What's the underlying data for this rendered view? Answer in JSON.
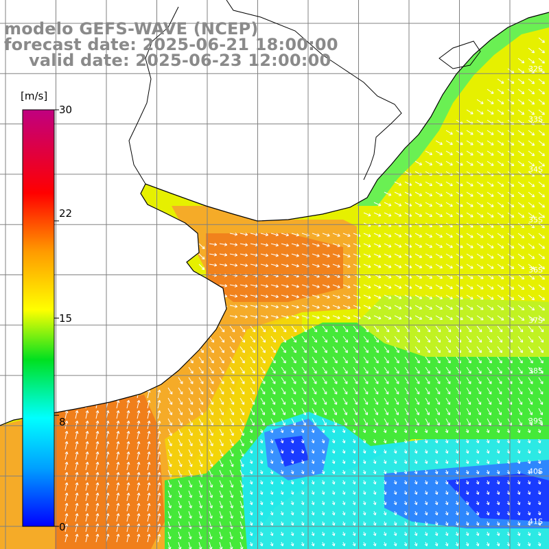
{
  "title": {
    "line1": "modelo GEFS-WAVE (NCEP)",
    "line2": "forecast date: 2025-06-21 18:00:00",
    "line3": "valid date: 2025-06-23 12:00:00"
  },
  "colorbar": {
    "unit": "[m/s]",
    "ticks": [
      {
        "label": "30",
        "value": 30
      },
      {
        "label": "22",
        "value": 22
      },
      {
        "label": "15",
        "value": 15
      },
      {
        "label": "8",
        "value": 8
      },
      {
        "label": "0",
        "value": 0
      }
    ],
    "colors": [
      "#0000ff",
      "#00b0ff",
      "#00ffff",
      "#00ff40",
      "#ffff00",
      "#ffa000",
      "#ff0000",
      "#c00080"
    ]
  },
  "latitude_labels": [
    "32S",
    "33S",
    "34S",
    "35S",
    "36S",
    "37S",
    "38S",
    "39S",
    "40S",
    "41S"
  ],
  "map": {
    "ocean_color": "#e6f000",
    "land_color": "#ffffff",
    "coast_color": "#000000",
    "grid_color": "#808080",
    "arrow_color": "#ffffff"
  }
}
